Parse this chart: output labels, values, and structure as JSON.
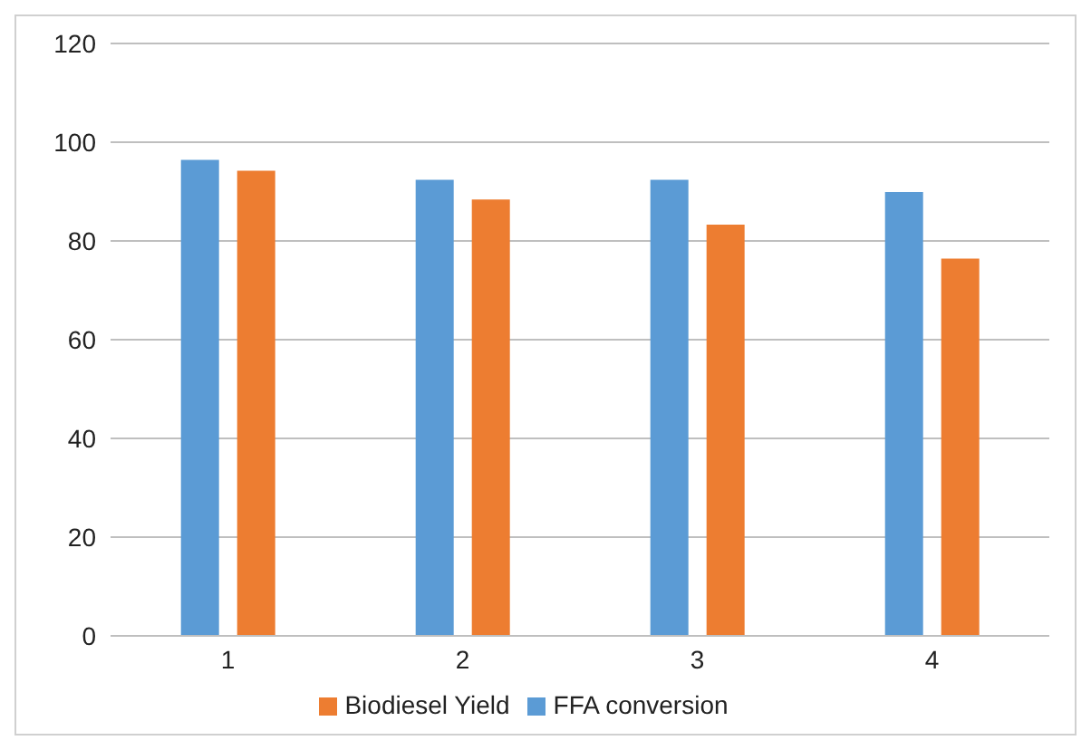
{
  "chart_data": {
    "type": "bar",
    "categories": [
      "1",
      "2",
      "3",
      "4"
    ],
    "series": [
      {
        "name": "FFA conversion",
        "color": "#5b9bd5",
        "values": [
          96.4,
          92.4,
          92.4,
          89.9
        ]
      },
      {
        "name": "Biodiesel Yield",
        "color": "#ed7d31",
        "values": [
          94.2,
          88.4,
          83.3,
          76.4
        ]
      }
    ],
    "ylim": [
      0,
      120
    ],
    "yticks": [
      0,
      20,
      40,
      60,
      80,
      100,
      120
    ],
    "grid": "y",
    "legend": "bottom"
  }
}
